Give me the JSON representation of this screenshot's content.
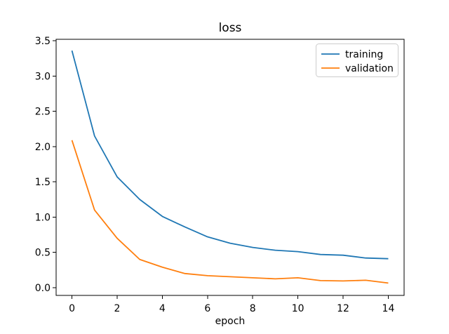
{
  "figure": {
    "background": "#ffffff",
    "text_color": "#000000",
    "spine_color": "#000000"
  },
  "chart_data": {
    "type": "line",
    "title": "loss",
    "xlabel": "epoch",
    "ylabel": "",
    "x": [
      0,
      1,
      2,
      3,
      4,
      5,
      6,
      7,
      8,
      9,
      10,
      11,
      12,
      13,
      14
    ],
    "series": [
      {
        "name": "training",
        "color": "#1f77b4",
        "values": [
          3.36,
          2.15,
          1.57,
          1.25,
          1.01,
          0.86,
          0.72,
          0.63,
          0.57,
          0.53,
          0.51,
          0.47,
          0.46,
          0.42,
          0.41
        ]
      },
      {
        "name": "validation",
        "color": "#ff7f0e",
        "values": [
          2.09,
          1.1,
          0.7,
          0.4,
          0.29,
          0.2,
          0.17,
          0.155,
          0.14,
          0.125,
          0.14,
          0.1,
          0.095,
          0.105,
          0.065
        ]
      }
    ],
    "xlim": [
      -0.7,
      14.7
    ],
    "ylim": [
      -0.11,
      3.52
    ],
    "xticks": {
      "values": [
        0,
        2,
        4,
        6,
        8,
        10,
        12,
        14
      ],
      "labels": [
        "0",
        "2",
        "4",
        "6",
        "8",
        "10",
        "12",
        "14"
      ]
    },
    "yticks": {
      "values": [
        0.0,
        0.5,
        1.0,
        1.5,
        2.0,
        2.5,
        3.0,
        3.5
      ],
      "labels": [
        "0.0",
        "0.5",
        "1.0",
        "1.5",
        "2.0",
        "2.5",
        "3.0",
        "3.5"
      ]
    },
    "grid": false,
    "legend": {
      "position": "upper right",
      "entries": [
        "training",
        "validation"
      ],
      "border_color": "#cccccc",
      "background": "#ffffff"
    }
  }
}
